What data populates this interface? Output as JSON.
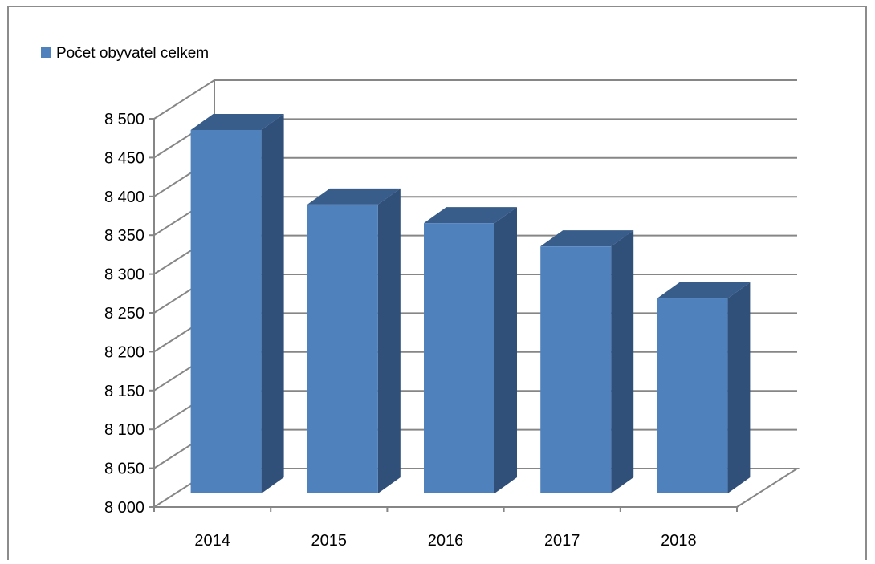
{
  "chart_data": {
    "type": "bar",
    "subtype": "3d-column",
    "categories": [
      "2014",
      "2015",
      "2016",
      "2017",
      "2018"
    ],
    "series": [
      {
        "name": "Počet obyvatel celkem",
        "values": [
          8468,
          8372,
          8348,
          8318,
          8251
        ]
      }
    ],
    "ylim": [
      8000,
      8500
    ],
    "yticks": [
      8000,
      8050,
      8100,
      8150,
      8200,
      8250,
      8300,
      8350,
      8400,
      8450,
      8500
    ],
    "ytick_labels": [
      "8 000",
      "8 050",
      "8 100",
      "8 150",
      "8 200",
      "8 250",
      "8 300",
      "8 350",
      "8 400",
      "8 450",
      "8 500"
    ],
    "grid": true,
    "legend_position": "top-left",
    "colors": {
      "bar_front": "#4f81bd",
      "bar_side": "#30507a",
      "bar_top": "#385d8a",
      "grid": "#868686",
      "axis": "#868686",
      "frame": "#8c8c8c"
    }
  }
}
